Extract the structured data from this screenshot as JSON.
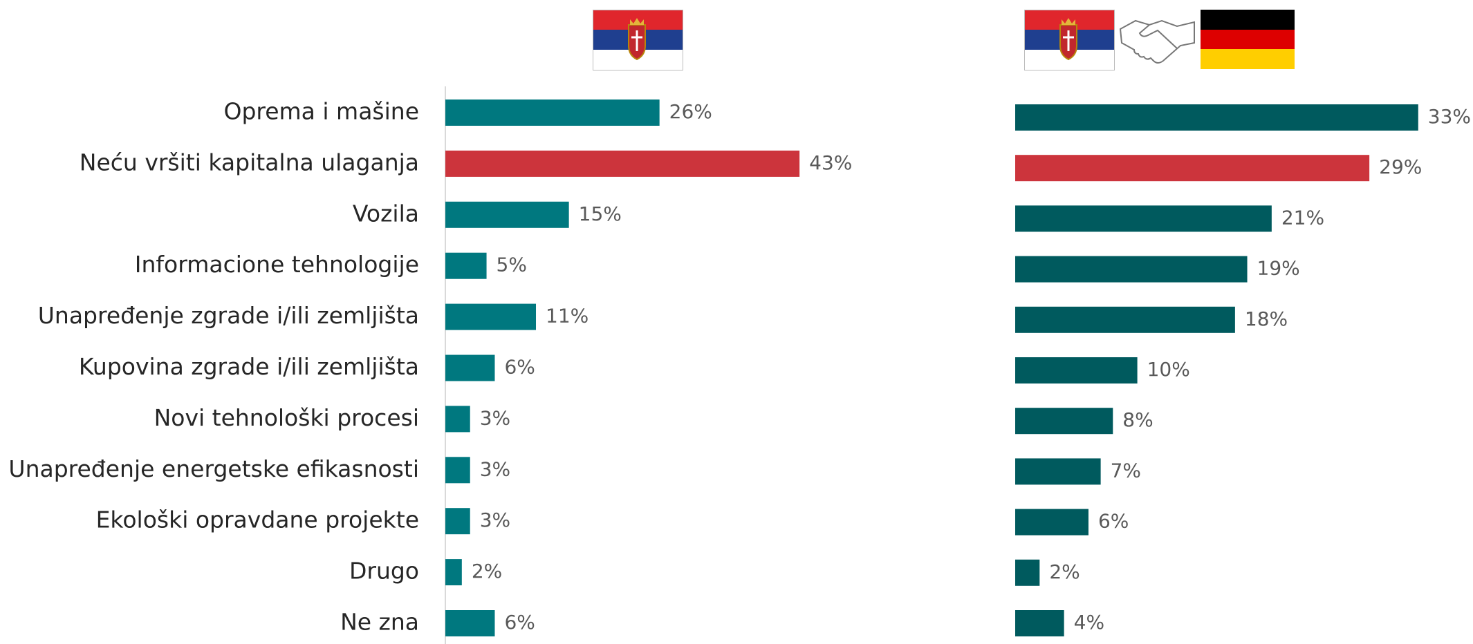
{
  "chart_data": [
    {
      "type": "bar",
      "orientation": "horizontal",
      "categories": [
        "Oprema i mašine",
        "Neću vršiti kapitalna ulaganja",
        "Vozila",
        "Informacione tehnologije",
        "Unapređenje zgrade i/ili zemljišta",
        "Kupovina zgrade i/ili zemljišta",
        "Novi tehnološki procesi",
        "Unapređenje energetske efikasnosti",
        "Ekološki opravdane projekte",
        "Drugo",
        "Ne zna"
      ],
      "values": [
        26,
        43,
        15,
        5,
        11,
        6,
        3,
        3,
        3,
        2,
        6
      ],
      "value_labels": [
        "26%",
        "43%",
        "15%",
        "5%",
        "11%",
        "6%",
        "3%",
        "3%",
        "3%",
        "2%",
        "6%"
      ],
      "colors": [
        "#00787f",
        "#cc343c",
        "#00787f",
        "#00787f",
        "#00787f",
        "#00787f",
        "#00787f",
        "#00787f",
        "#00787f",
        "#00787f",
        "#00787f"
      ]
    },
    {
      "type": "bar",
      "orientation": "horizontal",
      "values": [
        33,
        29,
        21,
        19,
        18,
        10,
        8,
        7,
        6,
        2,
        4
      ],
      "value_labels": [
        "33%",
        "29%",
        "21%",
        "19%",
        "18%",
        "10%",
        "8%",
        "7%",
        "6%",
        "2%",
        "4%"
      ],
      "colors": [
        "#005a5e",
        "#cc343c",
        "#005a5e",
        "#005a5e",
        "#005a5e",
        "#005a5e",
        "#005a5e",
        "#005a5e",
        "#005a5e",
        "#005a5e",
        "#005a5e"
      ]
    }
  ]
}
